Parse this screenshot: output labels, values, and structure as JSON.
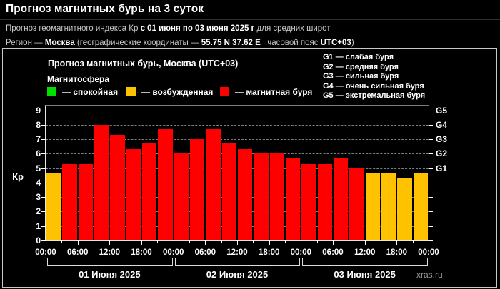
{
  "header": {
    "title": "Прогноз магнитных бурь на 3 суток",
    "line2": {
      "pre": "Прогноз геомагнитного индекса Кр ",
      "bold": "с 01 июня по 03 июня 2025 г",
      "post": " для средних широт"
    },
    "line3": {
      "p1": "Регион — ",
      "b1": "Москва",
      "p2": " (географические координаты — ",
      "b2": "55.75 N 37.62 E",
      "p3": " | часовой пояс ",
      "b3": "UTC+03",
      "p4": ")"
    }
  },
  "chart": {
    "box_title": "Прогноз магнитных бурь, Москва (UTC+03)",
    "magnetosphere": {
      "label": "Магнитосфера",
      "items": [
        {
          "name": "quiet",
          "label": "— спокойная",
          "color": "#00dd00"
        },
        {
          "name": "excited",
          "label": "— возбужденная",
          "color": "#ffc200"
        },
        {
          "name": "storm",
          "label": "— магнитная буря",
          "color": "#ff0000"
        }
      ]
    },
    "storm_scale_legend": [
      "G1 — слабая буря",
      "G2 — средняя буря",
      "G3 — сильная буря",
      "G4 — очень сильная буря",
      "G5 — экстремальная буря"
    ],
    "watermark": "xras.ru"
  },
  "chart_data": {
    "type": "bar",
    "title": "Прогноз магнитных бурь, Москва (UTC+03)",
    "ylabel": "Кр",
    "ylim": [
      0,
      9
    ],
    "yticks": [
      0,
      1,
      2,
      3,
      4,
      5,
      6,
      7,
      8,
      9
    ],
    "right_axis_labels": [
      {
        "label": "G1",
        "kp": 5
      },
      {
        "label": "G2",
        "kp": 6
      },
      {
        "label": "G3",
        "kp": 7
      },
      {
        "label": "G4",
        "kp": 8
      },
      {
        "label": "G5",
        "kp": 9
      }
    ],
    "x_tick_labels": [
      "00:00",
      "06:00",
      "12:00",
      "18:00",
      "00:00",
      "06:00",
      "12:00",
      "18:00",
      "00:00",
      "06:00",
      "12:00",
      "18:00",
      "00:00"
    ],
    "interval_hours": 3,
    "days": [
      {
        "label": "01 Июня 2025",
        "values": [
          4.7,
          5.3,
          5.3,
          8.0,
          7.3,
          6.3,
          6.7,
          7.7
        ]
      },
      {
        "label": "02 Июня 2025",
        "values": [
          6.0,
          7.0,
          7.7,
          6.7,
          6.3,
          6.0,
          6.0,
          5.7
        ]
      },
      {
        "label": "03 Июня 2025",
        "values": [
          5.3,
          5.3,
          5.7,
          5.0,
          4.7,
          4.7,
          4.3,
          4.7
        ]
      }
    ],
    "colors": {
      "quiet": "#00dd00",
      "excited": "#ffc200",
      "storm": "#ff0000"
    },
    "color_rule": {
      "storm_min_kp": 5,
      "excited_min_kp": 4
    },
    "grid": "horizontal dashed",
    "legend_position": "top-left"
  }
}
